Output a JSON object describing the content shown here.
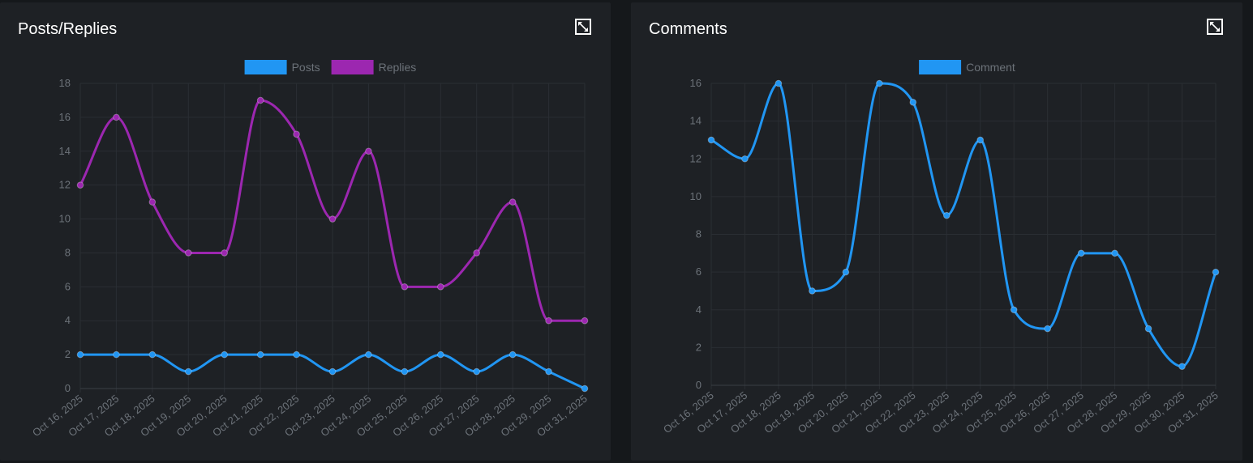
{
  "colors": {
    "posts": "#2196f3",
    "replies": "#9c27b0",
    "comment": "#2196f3"
  },
  "left_panel": {
    "title": "Posts/Replies",
    "expand_icon": "expand-icon"
  },
  "right_panel": {
    "title": "Comments",
    "expand_icon": "expand-icon"
  },
  "chart_data": [
    {
      "type": "line",
      "title": "Posts/Replies",
      "categories": [
        "Oct 16, 2025",
        "Oct 17, 2025",
        "Oct 18, 2025",
        "Oct 19, 2025",
        "Oct 20, 2025",
        "Oct 21, 2025",
        "Oct 22, 2025",
        "Oct 23, 2025",
        "Oct 24, 2025",
        "Oct 25, 2025",
        "Oct 26, 2025",
        "Oct 27, 2025",
        "Oct 28, 2025",
        "Oct 29, 2025",
        "Oct 31, 2025"
      ],
      "ylim": [
        0,
        18
      ],
      "yticks": [
        0,
        2,
        4,
        6,
        8,
        10,
        12,
        14,
        16,
        18
      ],
      "legend": "top-center",
      "series": [
        {
          "name": "Posts",
          "color": "#2196f3",
          "values": [
            2,
            2,
            2,
            1,
            2,
            2,
            2,
            1,
            2,
            1,
            2,
            1,
            2,
            1,
            0
          ]
        },
        {
          "name": "Replies",
          "color": "#9c27b0",
          "values": [
            12,
            16,
            11,
            8,
            8,
            17,
            15,
            10,
            14,
            6,
            6,
            8,
            11,
            4,
            4
          ]
        }
      ]
    },
    {
      "type": "line",
      "title": "Comments",
      "categories": [
        "Oct 16, 2025",
        "Oct 17, 2025",
        "Oct 18, 2025",
        "Oct 19, 2025",
        "Oct 20, 2025",
        "Oct 21, 2025",
        "Oct 22, 2025",
        "Oct 23, 2025",
        "Oct 24, 2025",
        "Oct 25, 2025",
        "Oct 26, 2025",
        "Oct 27, 2025",
        "Oct 28, 2025",
        "Oct 29, 2025",
        "Oct 30, 2025",
        "Oct 31, 2025"
      ],
      "ylim": [
        0,
        16
      ],
      "yticks": [
        0,
        2,
        4,
        6,
        8,
        10,
        12,
        14,
        16
      ],
      "legend": "top-center",
      "series": [
        {
          "name": "Comment",
          "color": "#2196f3",
          "values": [
            13,
            12,
            16,
            5,
            6,
            16,
            15,
            9,
            13,
            4,
            3,
            7,
            7,
            3,
            1,
            6
          ]
        }
      ]
    }
  ]
}
